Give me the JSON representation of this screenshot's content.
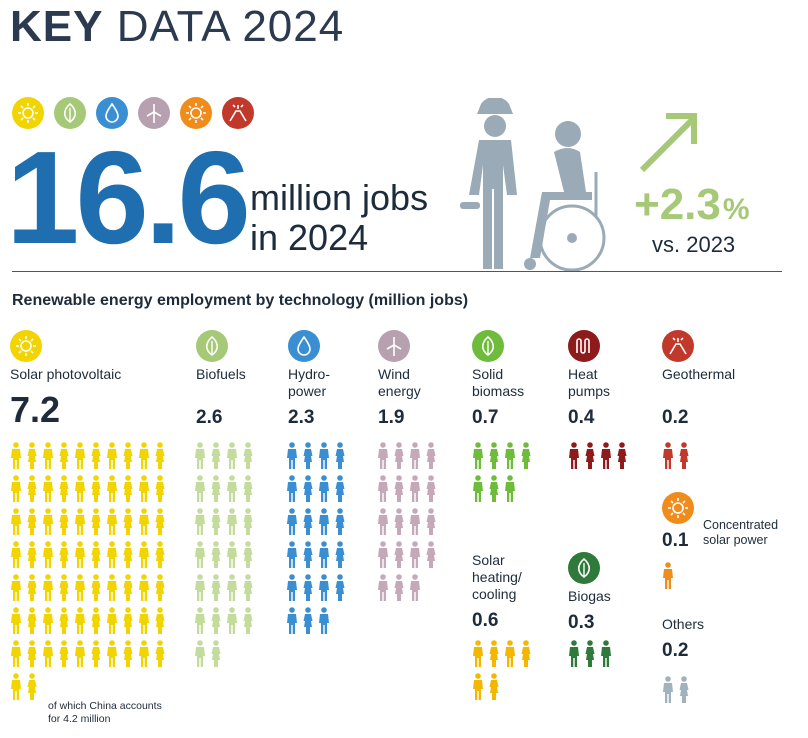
{
  "title": {
    "bold": "KEY",
    "light": "DATA 2024"
  },
  "top_icons": [
    {
      "name": "sun-icon",
      "color": "#f2d400"
    },
    {
      "name": "leaf-icon",
      "color": "#a6c977"
    },
    {
      "name": "water-drop-icon",
      "color": "#3a8fd3"
    },
    {
      "name": "wind-turbine-icon",
      "color": "#b7a1b1"
    },
    {
      "name": "sun-icon",
      "color": "#ef8c1c"
    },
    {
      "name": "volcano-icon",
      "color": "#c0392b"
    }
  ],
  "headline": {
    "value": "16.6",
    "text": "million jobs\nin 2024"
  },
  "growth": {
    "value": "+2.3",
    "unit": "%",
    "comparison": "vs. 2023"
  },
  "subtitle": "Renewable energy employment by technology (million jobs)",
  "colors": {
    "solar_pv": "#f2d400",
    "biofuels": "#c4dc9b",
    "hydro": "#3a8fd3",
    "wind": "#c5a9b8",
    "solid_biomass": "#6fbb3c",
    "heat_pumps": "#8e1b1b",
    "geothermal": "#c0392b",
    "csp": "#ef8c1c",
    "solar_heating": "#f3b700",
    "biogas": "#2f7a3a",
    "others": "#9fb2bd"
  },
  "technologies": {
    "solar_pv": {
      "name": "Solar photovoltaic",
      "value": "7.2",
      "people": 72
    },
    "biofuels": {
      "name": "Biofuels",
      "value": "2.6",
      "people": 26
    },
    "hydro": {
      "name": "Hydro-\npower",
      "value": "2.3",
      "people": 23
    },
    "wind": {
      "name": "Wind\nenergy",
      "value": "1.9",
      "people": 19
    },
    "solid_biomass": {
      "name": "Solid\nbiomass",
      "value": "0.7",
      "people": 7
    },
    "heat_pumps": {
      "name": "Heat\npumps",
      "value": "0.4",
      "people": 4
    },
    "geothermal": {
      "name": "Geothermal",
      "value": "0.2",
      "people": 2
    },
    "csp": {
      "name": "Concentrated\nsolar power",
      "value": "0.1",
      "people": 1
    },
    "solar_heating": {
      "name": "Solar\nheating/\ncooling",
      "value": "0.6",
      "people": 6
    },
    "biogas": {
      "name": "Biogas",
      "value": "0.3",
      "people": 3
    },
    "others": {
      "name": "Others",
      "value": "0.2",
      "people": 2
    }
  },
  "china_note": "of which China accounts\nfor 4.2 million"
}
